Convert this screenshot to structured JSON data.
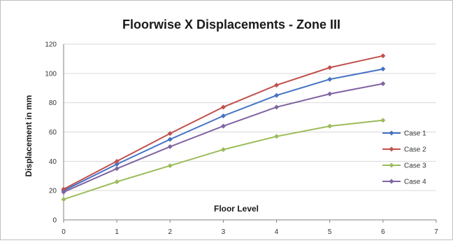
{
  "chart_data": {
    "type": "line",
    "title": "Floorwise X Displacements  - Zone III",
    "xlabel": "Floor Level",
    "ylabel": "Displacement in mm",
    "xlim": [
      0,
      7
    ],
    "ylim": [
      0,
      120
    ],
    "x_ticks": [
      "0",
      "1",
      "2",
      "3",
      "4",
      "5",
      "6",
      "7"
    ],
    "y_ticks": [
      "0",
      "20",
      "40",
      "60",
      "80",
      "100",
      "120"
    ],
    "grid": true,
    "legend_position": "right",
    "x": [
      0,
      1,
      2,
      3,
      4,
      5,
      6
    ],
    "series": [
      {
        "name": "Case 1",
        "color": "#4472c4",
        "values": [
          20,
          38,
          55,
          71,
          85,
          96,
          103
        ]
      },
      {
        "name": "Case 2",
        "color": "#c0504d",
        "values": [
          21,
          40,
          59,
          77,
          92,
          104,
          112
        ]
      },
      {
        "name": "Case 3",
        "color": "#9bbb59",
        "values": [
          14,
          26,
          37,
          48,
          57,
          64,
          68
        ]
      },
      {
        "name": "Case 4",
        "color": "#8064a2",
        "values": [
          19,
          35,
          50,
          64,
          77,
          86,
          93
        ]
      }
    ]
  }
}
